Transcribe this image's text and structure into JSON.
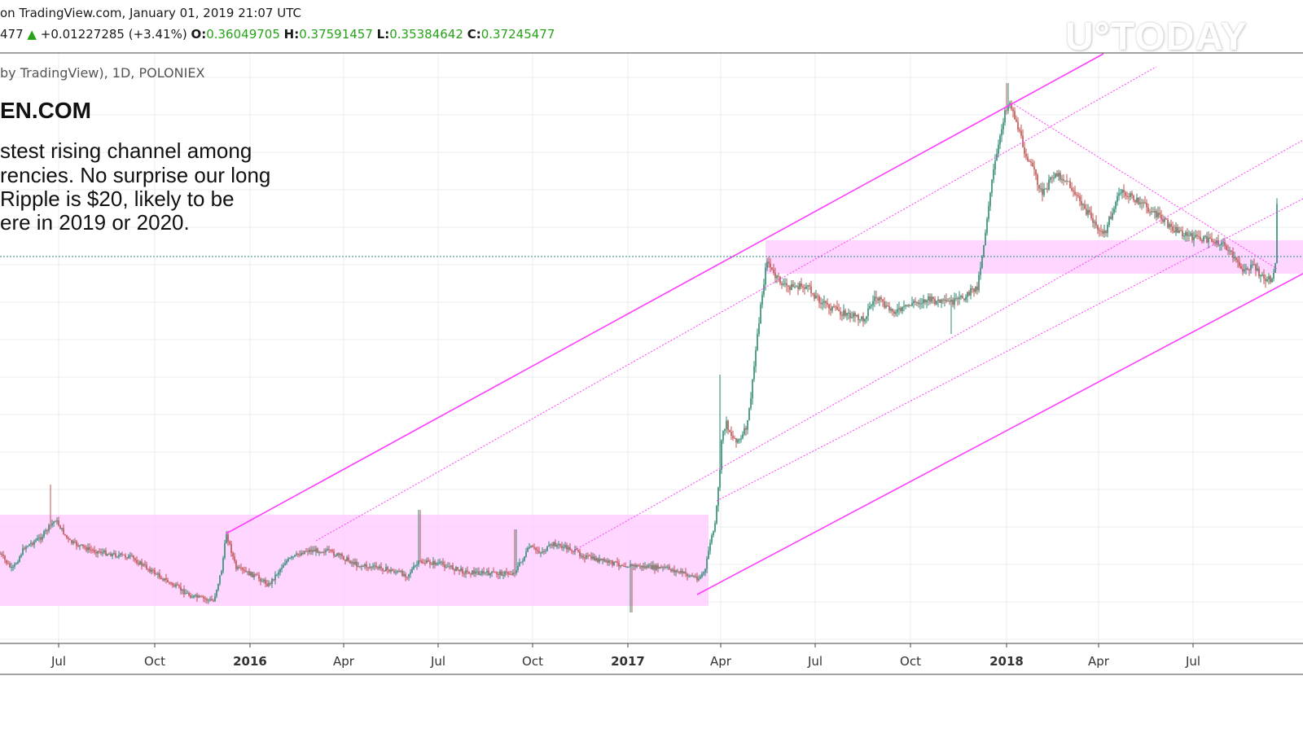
{
  "header": {
    "line1": "on TradingView.com, January 01, 2019 21:07 UTC",
    "last_fragment": "477",
    "change": "+0.01227285 (+3.41%)",
    "open_label": "O:",
    "open": "0.36049705",
    "high_label": "H:",
    "high": "0.37591457",
    "low_label": "L:",
    "low": "0.35384642",
    "close_label": "C:",
    "close": "0.37245477",
    "change_icon": "up-triangle-icon"
  },
  "symbol_line": "by TradingView), 1D, POLONIEX",
  "site_label": "EN.COM",
  "note_lines": [
    "stest rising channel among",
    "rencies. No surprise our long",
    " Ripple is $20, likely to be",
    "ere in 2019 or 2020."
  ],
  "watermark": "U°TODAY",
  "colors": {
    "channel": "#ff3cff",
    "zone_fill": "#ffc8ff",
    "candle_up": "#2a8a72",
    "candle_down": "#c0504d",
    "grid": "#e8ecf0",
    "up_value": "#26a317"
  },
  "chart_data": {
    "type": "candlestick",
    "exchange": "POLONIEX",
    "interval": "1D",
    "x_ticks": [
      "Jul",
      "Oct",
      "2016",
      "Apr",
      "Jul",
      "Oct",
      "2017",
      "Apr",
      "Jul",
      "Oct",
      "2018",
      "Apr",
      "Jul"
    ],
    "x_range": [
      "2015-05",
      "2018-09"
    ],
    "price_shape": [
      [
        "2015-05",
        "low"
      ],
      [
        "2015-07",
        "local peak"
      ],
      [
        "2015-11",
        "bottom"
      ],
      [
        "2015-12",
        "spike"
      ],
      [
        "2016-01",
        "range"
      ],
      [
        "2017-03",
        "range"
      ],
      [
        "2017-04",
        "breakout"
      ],
      [
        "2017-05",
        "rally top"
      ],
      [
        "2017-06",
        "2017-12",
        "sideways"
      ],
      [
        "2018-01",
        "all-time high"
      ],
      [
        "2018-04",
        "decline"
      ],
      [
        "2018-08",
        "range"
      ],
      [
        "2018-09",
        "bounce"
      ]
    ],
    "annotations": [
      "rising channel",
      "two horizontal support/resistance zones",
      "dotted channel midlines",
      "diagonal downtrend line from 2018 high",
      "horizontal dotted last-price line"
    ]
  }
}
